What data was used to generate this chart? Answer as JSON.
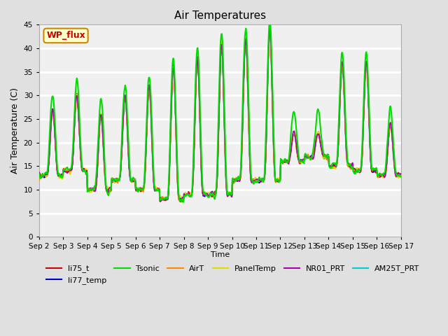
{
  "title": "Air Temperatures",
  "ylabel": "Air Temperature (C)",
  "xlabel": "Time",
  "ylim": [
    0,
    45
  ],
  "yticks": [
    0,
    5,
    10,
    15,
    20,
    25,
    30,
    35,
    40,
    45
  ],
  "num_days": 15,
  "lines": {
    "li75_t": {
      "color": "#cc0000",
      "lw": 1.2,
      "zorder": 3
    },
    "li77_temp": {
      "color": "#0000cc",
      "lw": 1.2,
      "zorder": 3
    },
    "Tsonic": {
      "color": "#00dd00",
      "lw": 1.5,
      "zorder": 4
    },
    "AirT": {
      "color": "#ff8800",
      "lw": 1.2,
      "zorder": 3
    },
    "PanelTemp": {
      "color": "#dddd00",
      "lw": 1.2,
      "zorder": 3
    },
    "NR01_PRT": {
      "color": "#aa00aa",
      "lw": 1.2,
      "zorder": 3
    },
    "AM25T_PRT": {
      "color": "#00cccc",
      "lw": 1.5,
      "zorder": 2
    }
  },
  "day_peaks": [
    27,
    30,
    26,
    30,
    32,
    36,
    38,
    41,
    42,
    44,
    22,
    22,
    37,
    37,
    24,
    27
  ],
  "day_mins": [
    13,
    14,
    10,
    12,
    10,
    8,
    9,
    9,
    12,
    12,
    16,
    17,
    15,
    14,
    13,
    13
  ],
  "tsonic_extra": [
    3,
    3,
    3,
    2,
    2,
    2,
    2,
    2,
    2,
    2,
    5,
    5,
    2,
    2,
    3,
    3
  ],
  "legend_box": {
    "text": "WP_flux",
    "facecolor": "#ffffcc",
    "edgecolor": "#cc8800",
    "textcolor": "#cc0000"
  },
  "bg_color": "#e0e0e0",
  "plot_bg_color": "#f0f0f0",
  "grid_color": "white",
  "xtick_dates": [
    "Sep 2",
    "Sep 3",
    "Sep 4",
    "Sep 5",
    "Sep 6",
    "Sep 7",
    "Sep 8",
    "Sep 9",
    "Sep 10",
    "Sep 11",
    "Sep 12",
    "Sep 13",
    "Sep 14",
    "Sep 15",
    "Sep 16",
    "Sep 17"
  ]
}
